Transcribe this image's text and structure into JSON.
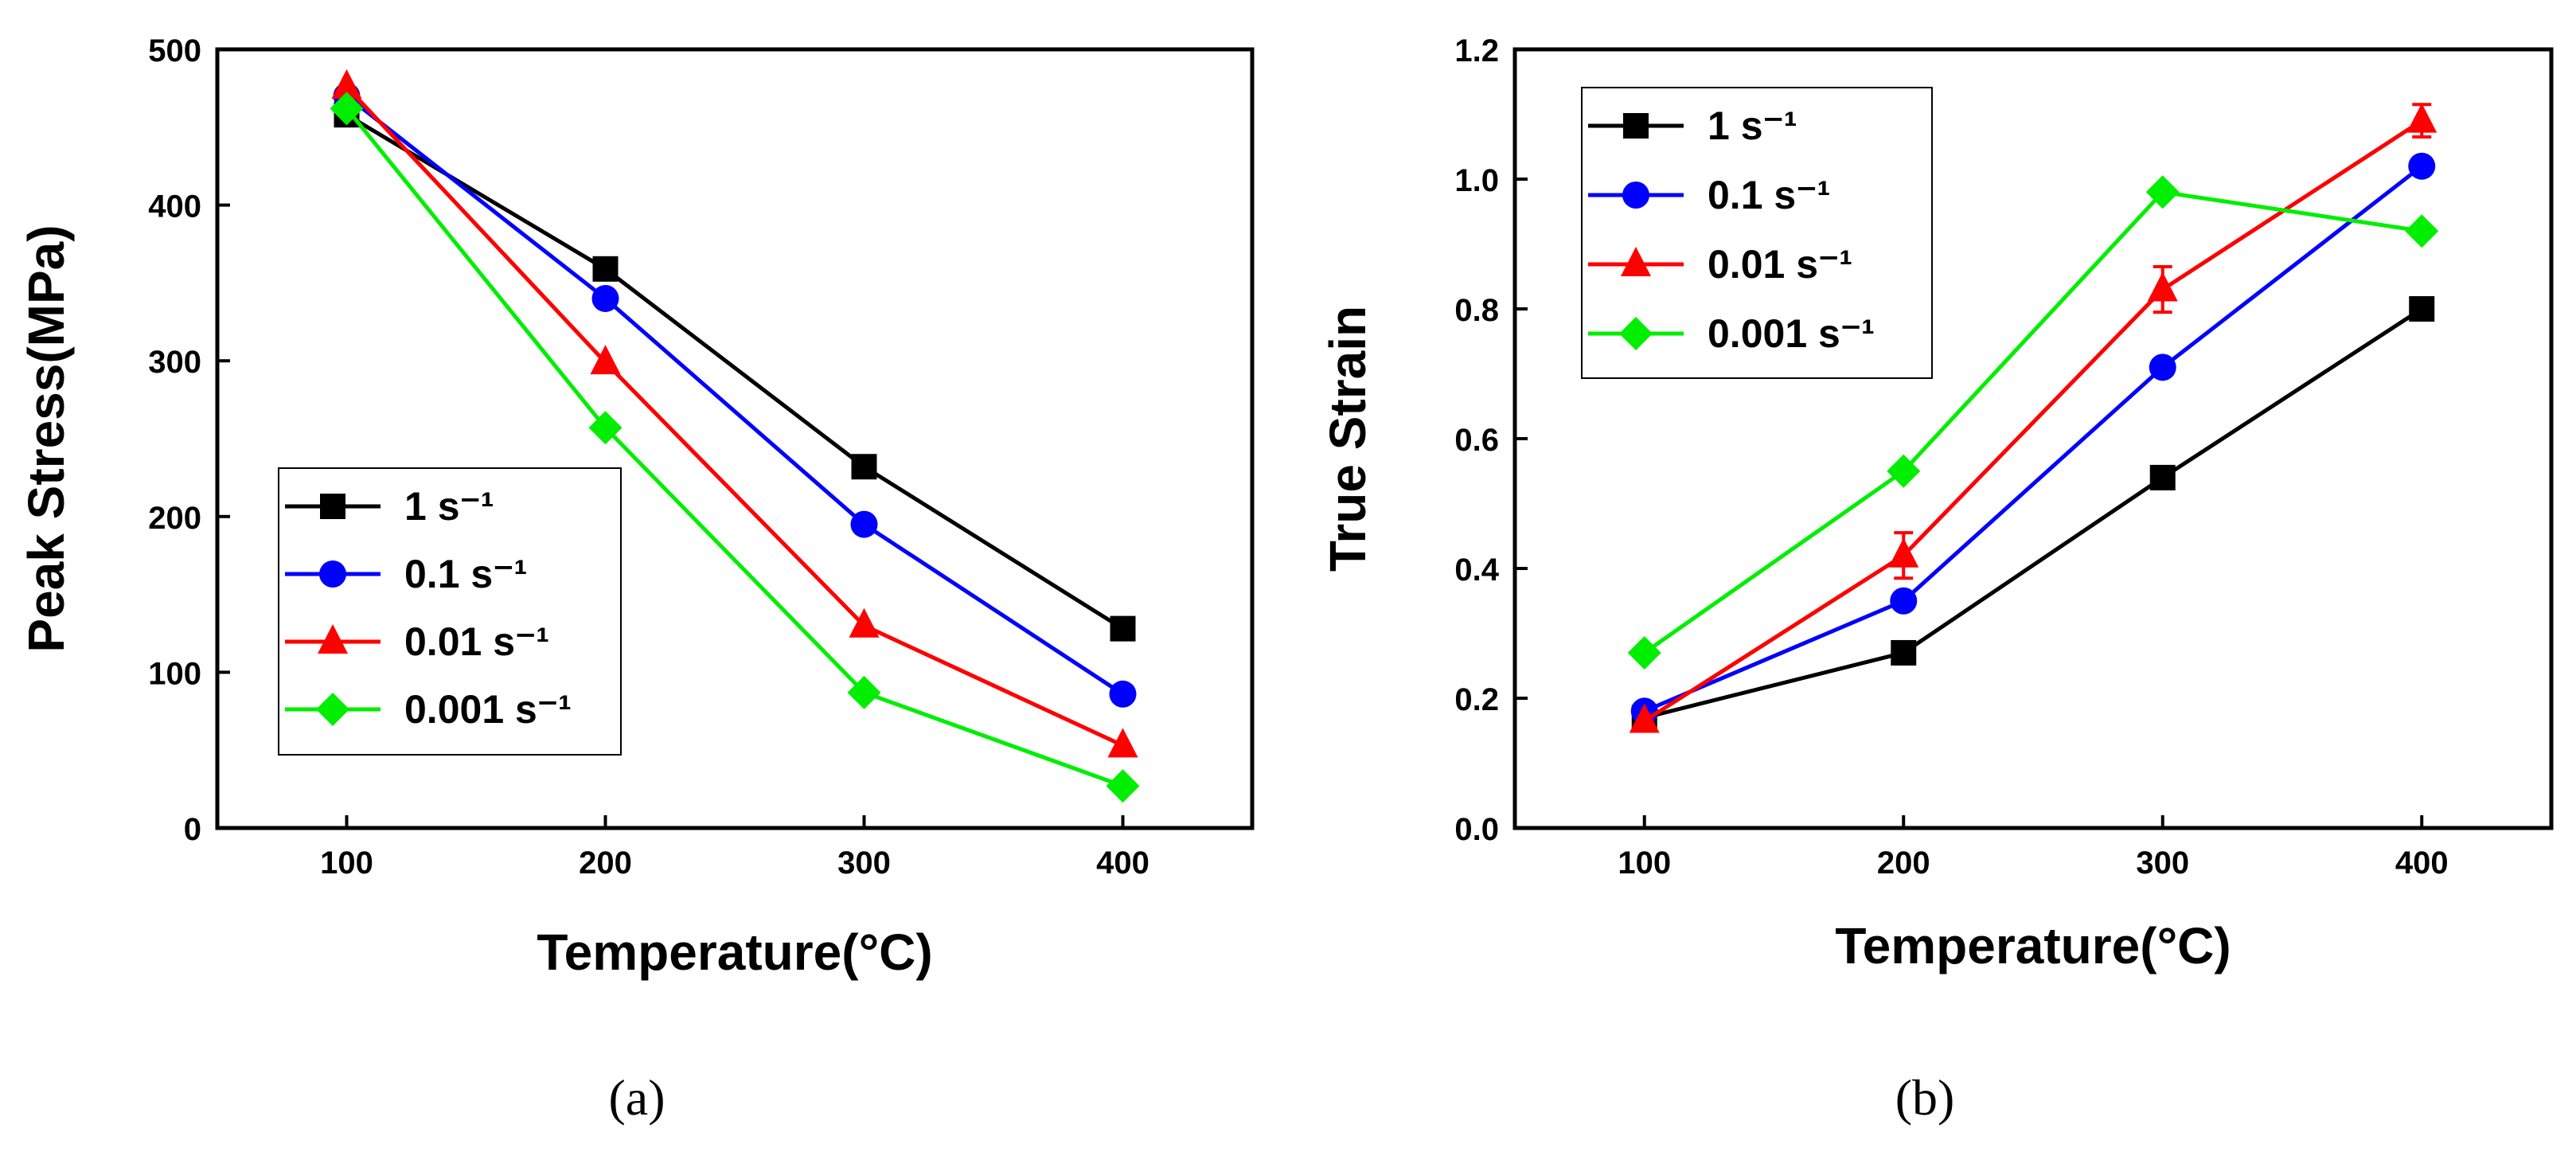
{
  "chart_data": [
    {
      "type": "line",
      "panel_label": "(a)",
      "xlabel": "Temperature(°C)",
      "ylabel": "Peak Stress(MPa)",
      "x": [
        100,
        200,
        300,
        400
      ],
      "xlim": [
        50,
        450
      ],
      "ylim": [
        0,
        500
      ],
      "xticks": [
        100,
        200,
        300,
        400
      ],
      "yticks": [
        0,
        100,
        200,
        300,
        400,
        500
      ],
      "legend_position": "lower-left",
      "series": [
        {
          "name": "1 s⁻¹",
          "marker": "square",
          "color": "#000000",
          "values": [
            458,
            359,
            232,
            128
          ]
        },
        {
          "name": "0.1 s⁻¹",
          "marker": "circle",
          "color": "#0000ff",
          "values": [
            470,
            340,
            195,
            86
          ]
        },
        {
          "name": "0.01 s⁻¹",
          "marker": "triangle",
          "color": "#ff0000",
          "values": [
            476,
            299,
            130,
            53
          ]
        },
        {
          "name": "0.001 s⁻¹",
          "marker": "diamond",
          "color": "#00ee00",
          "values": [
            462,
            257,
            87,
            27
          ]
        }
      ]
    },
    {
      "type": "line",
      "panel_label": "(b)",
      "xlabel": "Temperature(°C)",
      "ylabel": "True Strain",
      "x": [
        100,
        200,
        300,
        400
      ],
      "xlim": [
        50,
        450
      ],
      "ylim": [
        0,
        1.2
      ],
      "xticks": [
        100,
        200,
        300,
        400
      ],
      "yticks": [
        0.0,
        0.2,
        0.4,
        0.6,
        0.8,
        1.0,
        1.2
      ],
      "legend_position": "top-left",
      "series": [
        {
          "name": "1 s⁻¹",
          "marker": "square",
          "color": "#000000",
          "values": [
            0.17,
            0.27,
            0.54,
            0.8
          ]
        },
        {
          "name": "0.1 s⁻¹",
          "marker": "circle",
          "color": "#0000ff",
          "values": [
            0.18,
            0.35,
            0.71,
            1.02
          ]
        },
        {
          "name": "0.01 s⁻¹",
          "marker": "triangle",
          "color": "#ff0000",
          "values": [
            0.165,
            0.42,
            0.83,
            1.09
          ],
          "errors": [
            0,
            0.035,
            0.035,
            0.025
          ]
        },
        {
          "name": "0.001 s⁻¹",
          "marker": "diamond",
          "color": "#00ee00",
          "values": [
            0.27,
            0.55,
            0.98,
            0.92
          ]
        }
      ]
    }
  ]
}
